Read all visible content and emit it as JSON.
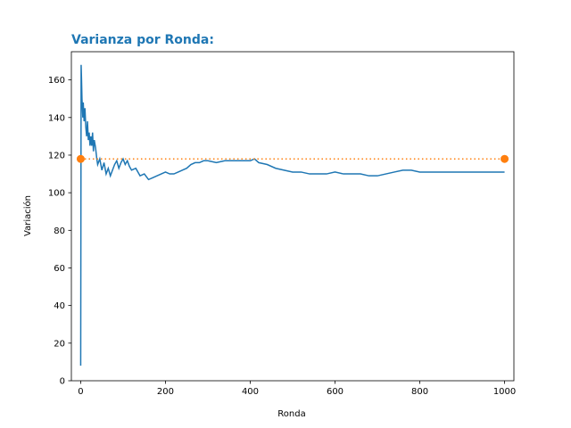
{
  "chart_data": {
    "type": "line",
    "title": "Varianza por Ronda:",
    "title_color": "#1f77b4",
    "xlabel": "Ronda",
    "ylabel": "Variación",
    "xlim": [
      -22,
      1022
    ],
    "ylim": [
      0,
      175
    ],
    "xticks": [
      "0",
      "200",
      "400",
      "600",
      "800",
      "1000"
    ],
    "xtick_values": [
      0,
      200,
      400,
      600,
      800,
      1000
    ],
    "yticks": [
      "0",
      "20",
      "40",
      "60",
      "80",
      "100",
      "120",
      "140",
      "160"
    ],
    "ytick_values": [
      0,
      20,
      40,
      60,
      80,
      100,
      120,
      140,
      160
    ],
    "grid": false,
    "series": [
      {
        "style": "solid",
        "color": "#1f77b4",
        "x": [
          0,
          1,
          2,
          3,
          4,
          5,
          6,
          8,
          10,
          12,
          14,
          16,
          18,
          20,
          22,
          24,
          26,
          28,
          30,
          32,
          35,
          38,
          40,
          45,
          50,
          55,
          60,
          65,
          70,
          75,
          80,
          85,
          90,
          95,
          100,
          105,
          110,
          115,
          120,
          130,
          140,
          150,
          160,
          170,
          180,
          190,
          200,
          210,
          220,
          230,
          240,
          250,
          260,
          270,
          280,
          290,
          300,
          320,
          340,
          360,
          380,
          400,
          410,
          420,
          440,
          460,
          480,
          500,
          520,
          540,
          560,
          580,
          600,
          620,
          640,
          660,
          680,
          700,
          720,
          740,
          760,
          780,
          800,
          850,
          900,
          950,
          1000
        ],
        "y": [
          8,
          168,
          160,
          150,
          145,
          140,
          148,
          138,
          145,
          135,
          130,
          138,
          128,
          132,
          125,
          130,
          125,
          132,
          122,
          128,
          124,
          118,
          115,
          118,
          112,
          116,
          110,
          113,
          109,
          112,
          115,
          117,
          113,
          116,
          118,
          115,
          117,
          114,
          112,
          113,
          109,
          110,
          107,
          108,
          109,
          110,
          111,
          110,
          110,
          111,
          112,
          113,
          115,
          116,
          116,
          117,
          117,
          116,
          117,
          117,
          117,
          117,
          118,
          116,
          115,
          113,
          112,
          111,
          111,
          110,
          110,
          110,
          111,
          110,
          110,
          110,
          109,
          109,
          110,
          111,
          112,
          112,
          111,
          111,
          111,
          111,
          111
        ]
      },
      {
        "style": "dotted",
        "color": "#ff7f0e",
        "x": [
          0,
          1000
        ],
        "y": [
          118,
          118
        ],
        "markers": true
      }
    ]
  }
}
